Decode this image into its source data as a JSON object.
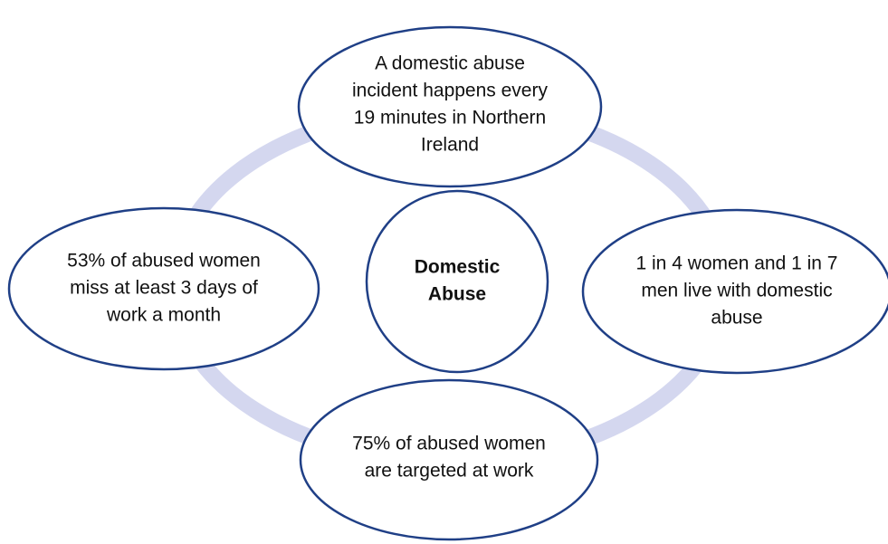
{
  "center": {
    "lines": [
      "Domestic",
      "Abuse"
    ]
  },
  "nodes": [
    {
      "lines": [
        "A domestic abuse",
        "incident happens every",
        "19 minutes in Northern",
        "Ireland"
      ]
    },
    {
      "lines": [
        "1 in 4 women and 1 in 7",
        "men live with domestic",
        "abuse"
      ]
    },
    {
      "lines": [
        "75% of abused women",
        "are targeted at work"
      ]
    },
    {
      "lines": [
        "53% of abused women",
        "miss at least 3 days of",
        "work a month"
      ]
    }
  ]
}
